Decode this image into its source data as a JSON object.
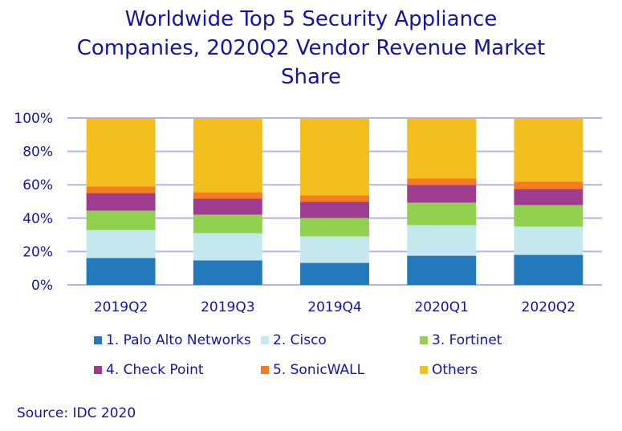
{
  "chart_data": {
    "type": "bar",
    "stacked": true,
    "percent_stacked": true,
    "title": "Worldwide Top 5 Security Appliance Companies, 2020Q2 Vendor Revenue Market Share",
    "title_lines": [
      "Worldwide Top 5 Security Appliance",
      "Companies, 2020Q2 Vendor Revenue Market",
      "Share"
    ],
    "xlabel": "",
    "ylabel": "",
    "ylim": [
      0,
      100
    ],
    "yticks": [
      0,
      20,
      40,
      60,
      80,
      100
    ],
    "ytick_labels": [
      "0%",
      "20%",
      "40%",
      "60%",
      "80%",
      "100%"
    ],
    "grid": true,
    "legend_position": "bottom",
    "categories": [
      "2019Q2",
      "2019Q3",
      "2019Q4",
      "2020Q1",
      "2020Q2"
    ],
    "series": [
      {
        "name": "1. Palo Alto Networks",
        "color": "#2479bd",
        "values": [
          16.1,
          14.7,
          13.2,
          17.5,
          18.0
        ]
      },
      {
        "name": "2. Cisco",
        "color": "#c5e8ef",
        "values": [
          16.8,
          16.3,
          15.9,
          18.3,
          16.9
        ]
      },
      {
        "name": "3. Fortinet",
        "color": "#92d050",
        "values": [
          11.6,
          11.1,
          11.0,
          13.5,
          12.9
        ]
      },
      {
        "name": "4. Check Point",
        "color": "#9e3d8f",
        "values": [
          10.5,
          9.6,
          9.7,
          10.6,
          9.7
        ]
      },
      {
        "name": "5. SonicWALL",
        "color": "#f47b20",
        "values": [
          3.9,
          3.8,
          3.8,
          3.8,
          4.3
        ]
      },
      {
        "name": "Others",
        "color": "#f3bf1e",
        "values": [
          41.1,
          44.5,
          46.4,
          36.3,
          38.2
        ]
      }
    ],
    "source": "Source: IDC 2020"
  },
  "colors": {
    "text": "#1414a8",
    "gridline": "#b4b4f0"
  }
}
